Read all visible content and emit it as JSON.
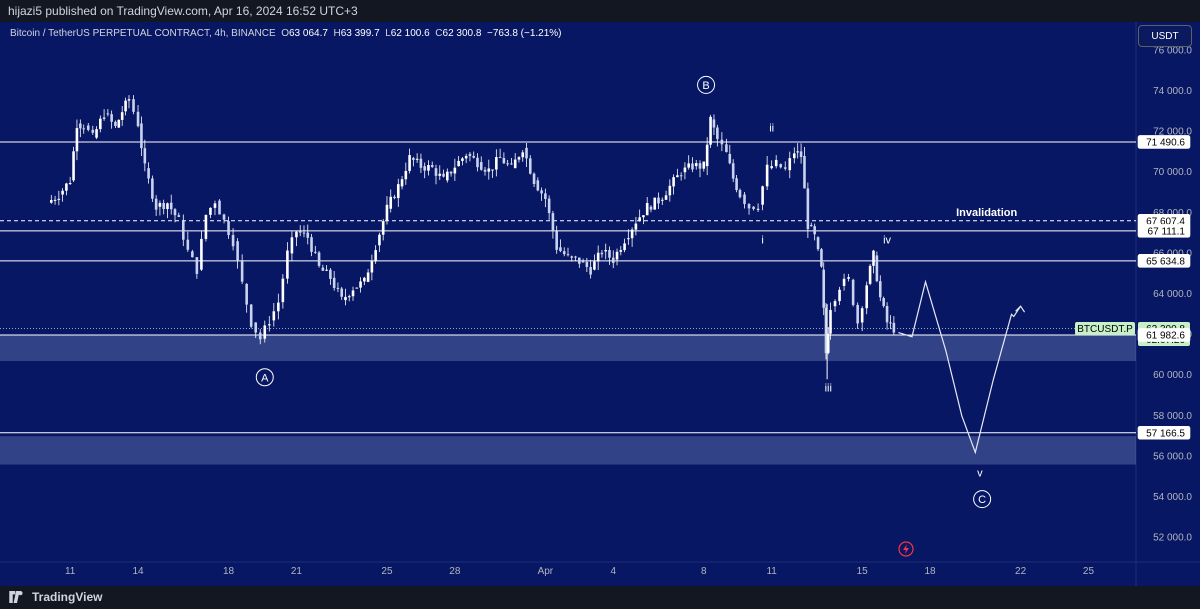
{
  "header": {
    "published": "hijazi5 published on TradingView.com, Apr 16, 2024 16:52 UTC+3"
  },
  "symbol": {
    "title": "Bitcoin / TetherUS PERPETUAL CONTRACT, 4h, BINANCE",
    "o_label": "O",
    "o": "63 064.7",
    "h_label": "H",
    "h": "63 399.7",
    "l_label": "L",
    "l": "62 100.6",
    "c_label": "C",
    "c": "62 300.8",
    "change": "−763.8 (−1.21%)"
  },
  "currency_button": "USDT",
  "footer": {
    "brand": "TradingView"
  },
  "colors": {
    "background": "#071764",
    "frame": "#131722",
    "line": "#ffffff",
    "zone": "rgba(140,160,210,0.32)",
    "price_tag": "#c8f0c8",
    "alert": "#f23645"
  },
  "chart_data": {
    "type": "candlestick",
    "timeframe": "4h",
    "ylim": [
      50800,
      77400
    ],
    "y_ticks": [
      52000,
      54000,
      56000,
      58000,
      60000,
      62000,
      64000,
      66000,
      68000,
      70000,
      72000,
      74000,
      76000
    ],
    "y_tick_labels": [
      "52 000.0",
      "54 000.0",
      "56 000.0",
      "58 000.0",
      "60 000.0",
      "62 000.0",
      "64 000.0",
      "66 000.0",
      "68 000.0",
      "70 000.0",
      "72 000.0",
      "74 000.0",
      "76 000.0"
    ],
    "x_ticks": [
      {
        "label": "11",
        "day": 11
      },
      {
        "label": "14",
        "day": 14
      },
      {
        "label": "18",
        "day": 18
      },
      {
        "label": "21",
        "day": 21
      },
      {
        "label": "25",
        "day": 25
      },
      {
        "label": "28",
        "day": 28
      },
      {
        "label": "Apr",
        "day": 32
      },
      {
        "label": "4",
        "day": 35
      },
      {
        "label": "8",
        "day": 39
      },
      {
        "label": "11",
        "day": 42
      },
      {
        "label": "15",
        "day": 46
      },
      {
        "label": "18",
        "day": 49
      },
      {
        "label": "22",
        "day": 53
      },
      {
        "label": "25",
        "day": 56
      }
    ],
    "price_path": [
      [
        10.0,
        68500
      ],
      [
        10.5,
        68900
      ],
      [
        11.0,
        69600
      ],
      [
        11.3,
        72400
      ],
      [
        11.6,
        72300
      ],
      [
        12.0,
        71700
      ],
      [
        12.5,
        72900
      ],
      [
        13.0,
        72200
      ],
      [
        13.3,
        73000
      ],
      [
        13.6,
        73600
      ],
      [
        14.0,
        72400
      ],
      [
        14.3,
        70200
      ],
      [
        14.8,
        68300
      ],
      [
        15.3,
        68500
      ],
      [
        15.8,
        67600
      ],
      [
        16.2,
        66100
      ],
      [
        16.6,
        65200
      ],
      [
        17.0,
        67900
      ],
      [
        17.4,
        68600
      ],
      [
        17.8,
        67600
      ],
      [
        18.2,
        66600
      ],
      [
        18.6,
        64500
      ],
      [
        19.0,
        62600
      ],
      [
        19.4,
        61800
      ],
      [
        19.8,
        62700
      ],
      [
        20.2,
        63600
      ],
      [
        20.6,
        66000
      ],
      [
        21.0,
        67100
      ],
      [
        21.5,
        66800
      ],
      [
        22.0,
        65300
      ],
      [
        22.5,
        64800
      ],
      [
        23.0,
        63700
      ],
      [
        23.5,
        64300
      ],
      [
        24.0,
        64600
      ],
      [
        24.5,
        66400
      ],
      [
        25.0,
        68200
      ],
      [
        25.5,
        69300
      ],
      [
        26.0,
        70700
      ],
      [
        26.5,
        70300
      ],
      [
        27.0,
        70200
      ],
      [
        27.5,
        69600
      ],
      [
        28.0,
        70300
      ],
      [
        28.5,
        70900
      ],
      [
        29.0,
        70500
      ],
      [
        29.5,
        70100
      ],
      [
        30.0,
        70700
      ],
      [
        30.5,
        70200
      ],
      [
        31.0,
        71200
      ],
      [
        31.5,
        69600
      ],
      [
        32.0,
        68700
      ],
      [
        32.5,
        66300
      ],
      [
        33.0,
        65800
      ],
      [
        33.5,
        65600
      ],
      [
        34.0,
        65200
      ],
      [
        34.5,
        66100
      ],
      [
        35.0,
        65700
      ],
      [
        35.5,
        66700
      ],
      [
        36.0,
        67600
      ],
      [
        36.5,
        68300
      ],
      [
        37.0,
        68600
      ],
      [
        37.5,
        69300
      ],
      [
        38.0,
        70000
      ],
      [
        38.5,
        70300
      ],
      [
        39.0,
        70300
      ],
      [
        39.3,
        72600
      ],
      [
        39.6,
        71600
      ],
      [
        40.0,
        70900
      ],
      [
        40.3,
        69700
      ],
      [
        40.6,
        68900
      ],
      [
        41.0,
        68300
      ],
      [
        41.4,
        68400
      ],
      [
        41.8,
        70200
      ],
      [
        42.2,
        70400
      ],
      [
        42.6,
        70100
      ],
      [
        43.0,
        71000
      ],
      [
        43.3,
        70800
      ],
      [
        43.6,
        67400
      ],
      [
        43.9,
        66800
      ],
      [
        44.2,
        65200
      ],
      [
        44.4,
        61100
      ],
      [
        44.6,
        63400
      ],
      [
        45.0,
        64400
      ],
      [
        45.4,
        64700
      ],
      [
        45.8,
        62600
      ],
      [
        46.2,
        64500
      ],
      [
        46.5,
        65900
      ],
      [
        46.8,
        63800
      ],
      [
        47.1,
        62600
      ],
      [
        47.4,
        62300
      ]
    ],
    "horizontal_levels": [
      71490.6,
      67607.4,
      67111.1,
      65634.8,
      61982.6,
      57166.5
    ],
    "dashed_level": 67607.4,
    "last_price": 62300.8,
    "price_labels": [
      "71 490.6",
      "67 607.4",
      "67 111.1",
      "65 634.8",
      "62 300.8",
      "61 982.6",
      "57 166.5"
    ],
    "countdown": "02:07:26",
    "ticker": "BTCUSDT.P",
    "zones": [
      [
        62000,
        60700
      ],
      [
        57000,
        55600
      ]
    ],
    "projection": [
      [
        47.6,
        62100
      ],
      [
        48.2,
        61900
      ],
      [
        48.8,
        64600
      ],
      [
        49.7,
        61200
      ],
      [
        50.4,
        58000
      ],
      [
        51.0,
        56200
      ],
      [
        51.8,
        59800
      ],
      [
        52.6,
        63000
      ],
      [
        52.7,
        62900
      ],
      [
        53.0,
        63400
      ]
    ],
    "annotations": [
      {
        "text": "Invalidation",
        "day": 51.5,
        "price": 67850,
        "kind": "label"
      },
      {
        "text": "B",
        "day": 39.1,
        "price": 74300,
        "kind": "circle"
      },
      {
        "text": "A",
        "day": 19.6,
        "price": 59900,
        "kind": "circle"
      },
      {
        "text": "C",
        "day": 51.3,
        "price": 53900,
        "kind": "circle"
      },
      {
        "text": "ii",
        "day": 42.0,
        "price": 72000,
        "kind": "text"
      },
      {
        "text": "i",
        "day": 41.6,
        "price": 66500,
        "kind": "text"
      },
      {
        "text": "iii",
        "day": 44.5,
        "price": 59200,
        "kind": "text"
      },
      {
        "text": "iv",
        "day": 47.1,
        "price": 66500,
        "kind": "text"
      },
      {
        "text": "v",
        "day": 51.2,
        "price": 55000,
        "kind": "text"
      }
    ]
  }
}
